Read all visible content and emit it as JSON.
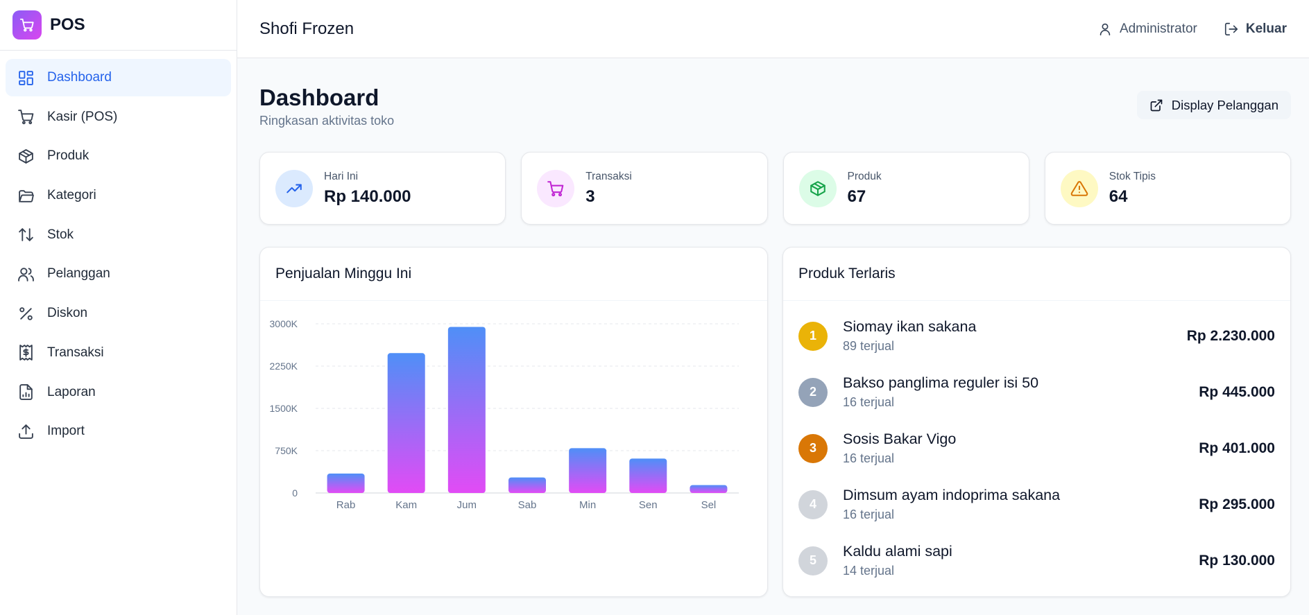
{
  "brand": {
    "name": "POS"
  },
  "sidebar": {
    "items": [
      {
        "label": "Dashboard",
        "icon": "dashboard-icon",
        "active": true
      },
      {
        "label": "Kasir (POS)",
        "icon": "cart-icon"
      },
      {
        "label": "Produk",
        "icon": "box-icon"
      },
      {
        "label": "Kategori",
        "icon": "folder-icon"
      },
      {
        "label": "Stok",
        "icon": "arrows-updown-icon"
      },
      {
        "label": "Pelanggan",
        "icon": "users-icon"
      },
      {
        "label": "Diskon",
        "icon": "percent-icon"
      },
      {
        "label": "Transaksi",
        "icon": "receipt-icon"
      },
      {
        "label": "Laporan",
        "icon": "report-icon"
      },
      {
        "label": "Import",
        "icon": "upload-icon"
      }
    ]
  },
  "header": {
    "store_name": "Shofi Frozen",
    "user_label": "Administrator",
    "logout_label": "Keluar"
  },
  "page": {
    "title": "Dashboard",
    "subtitle": "Ringkasan aktivitas toko",
    "display_button": "Display Pelanggan"
  },
  "stats": [
    {
      "label": "Hari Ini",
      "value": "Rp 140.000",
      "icon": "trending-up-icon",
      "bg": "#dbeafe",
      "fg": "#2563eb"
    },
    {
      "label": "Transaksi",
      "value": "3",
      "icon": "cart-icon",
      "bg": "#fae8ff",
      "fg": "#c026d3"
    },
    {
      "label": "Produk",
      "value": "67",
      "icon": "box-icon",
      "bg": "#dcfce7",
      "fg": "#16a34a"
    },
    {
      "label": "Stok Tipis",
      "value": "64",
      "icon": "alert-triangle-icon",
      "bg": "#fef9c3",
      "fg": "#d97706"
    }
  ],
  "sales_panel": {
    "title": "Penjualan Minggu Ini"
  },
  "chart_data": {
    "type": "bar",
    "categories": [
      "Rab",
      "Kam",
      "Jum",
      "Sab",
      "Min",
      "Sen",
      "Sel"
    ],
    "values": [
      345,
      2480,
      2945,
      275,
      795,
      610,
      140
    ],
    "unit": "K",
    "ylim": [
      0,
      3000
    ],
    "yticks": [
      "0",
      "750K",
      "1500K",
      "2250K",
      "3000K"
    ],
    "ytick_values": [
      0,
      750,
      1500,
      2250,
      3000
    ],
    "title": "",
    "xlabel": "",
    "ylabel": "",
    "grid": true,
    "colors": {
      "top": "#4f8ff7",
      "bottom": "#e24bf5"
    }
  },
  "top_panel": {
    "title": "Produk Terlaris",
    "items": [
      {
        "rank": "1",
        "name": "Siomay ikan sakana",
        "sold": "89 terjual",
        "amount": "Rp 2.230.000",
        "color": "#eab308"
      },
      {
        "rank": "2",
        "name": "Bakso panglima reguler isi 50",
        "sold": "16 terjual",
        "amount": "Rp 445.000",
        "color": "#94a3b8"
      },
      {
        "rank": "3",
        "name": "Sosis Bakar Vigo",
        "sold": "16 terjual",
        "amount": "Rp 401.000",
        "color": "#d97706"
      },
      {
        "rank": "4",
        "name": "Dimsum ayam indoprima sakana",
        "sold": "16 terjual",
        "amount": "Rp 295.000",
        "color": "#d1d5db"
      },
      {
        "rank": "5",
        "name": "Kaldu alami sapi",
        "sold": "14 terjual",
        "amount": "Rp 130.000",
        "color": "#d1d5db"
      }
    ]
  }
}
